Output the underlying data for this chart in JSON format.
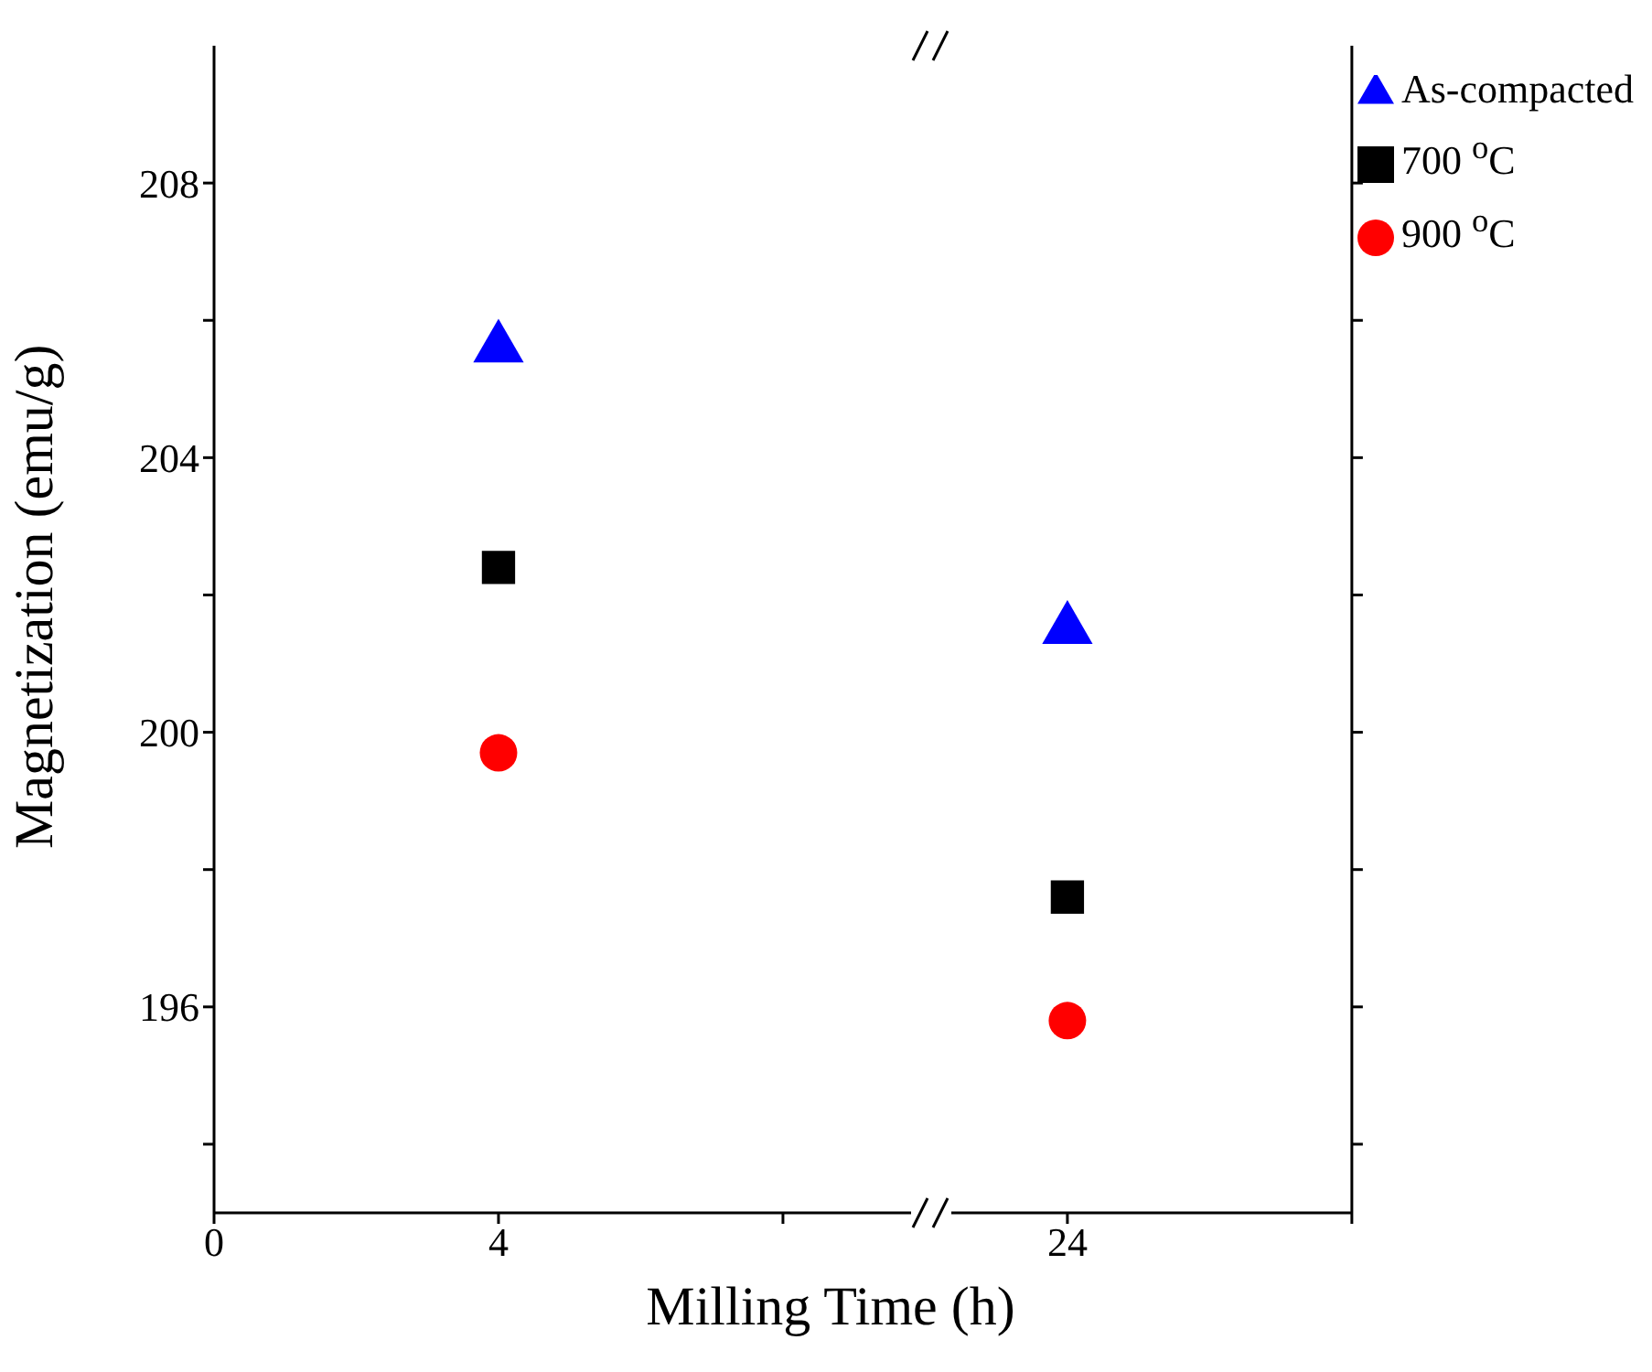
{
  "chart_data": {
    "type": "scatter",
    "xlabel": "Milling Time (h)",
    "ylabel": "Magnetization (emu/g)",
    "categories": [
      "0",
      "4",
      null,
      "24",
      null
    ],
    "ylim": [
      193,
      210
    ],
    "yticks": [
      {
        "value": 194,
        "label": null
      },
      196,
      {
        "value": 198,
        "label": null
      },
      200,
      {
        "value": 202,
        "label": null
      },
      204,
      {
        "value": 206,
        "label": null
      },
      208
    ],
    "legend": "top right",
    "series": [
      {
        "name": "As-compacted",
        "color": "#0000ff",
        "marker": "triangle",
        "values": [
          null,
          205.6,
          null,
          201.5,
          null
        ]
      },
      {
        "name": "700 $^{o}$C",
        "color": "#000000",
        "marker": "square",
        "values": [
          null,
          202.4,
          null,
          197.6,
          null
        ]
      },
      {
        "name": "900 $^{o}$C",
        "color": "#ff0000",
        "marker": "circle",
        "values": [
          null,
          199.7,
          null,
          195.8,
          null
        ]
      }
    ]
  }
}
